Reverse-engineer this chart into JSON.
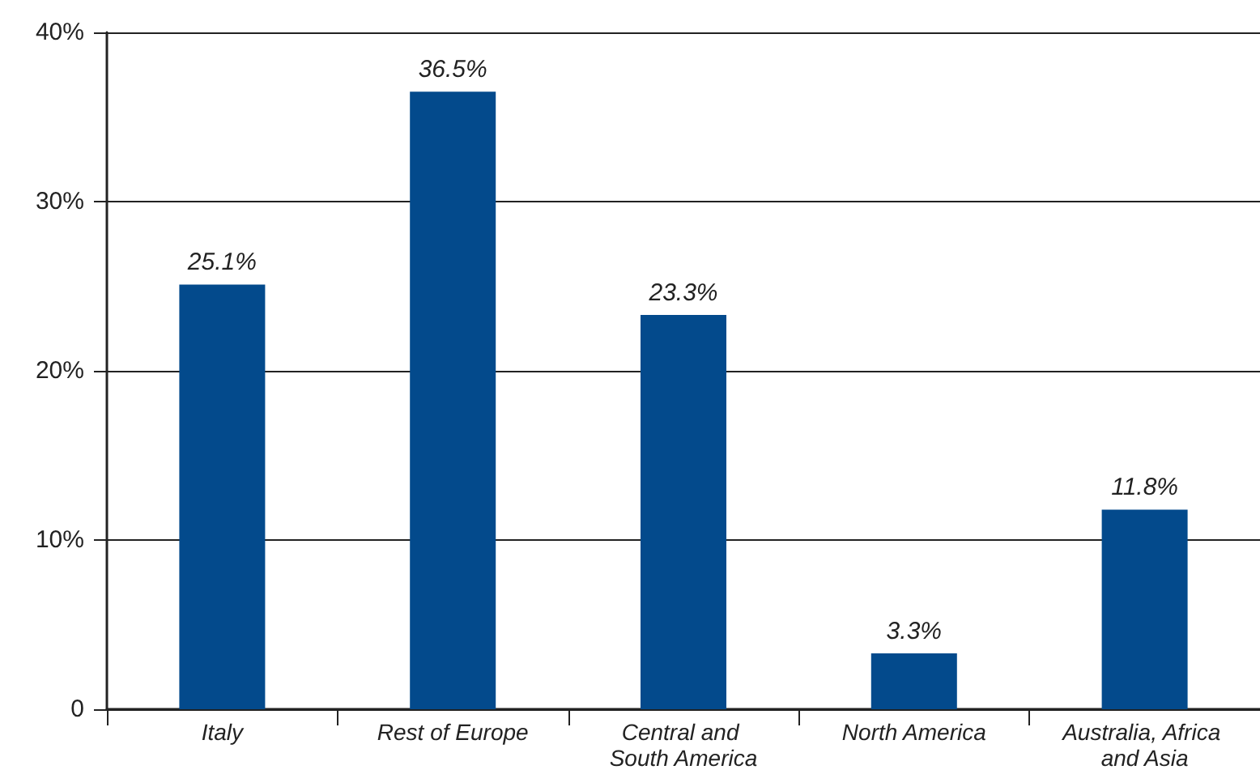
{
  "chart_data": {
    "type": "bar",
    "categories": [
      "Italy",
      "Rest of Europe",
      "Central and South America",
      "North America",
      "Australia, Africa and Asia"
    ],
    "values": [
      25.1,
      36.5,
      23.3,
      3.3,
      11.8
    ],
    "value_labels": [
      "25.1%",
      "36.5%",
      "23.3%",
      "3.3%",
      "11.8%"
    ],
    "color": "#034a8c",
    "ylim": [
      0,
      40
    ],
    "yticks": [
      0,
      {
        "value": 10,
        "label": "10%"
      },
      {
        "value": 20,
        "label": "20%"
      },
      {
        "value": 30,
        "label": "30%"
      },
      {
        "value": 40,
        "label": "40%"
      }
    ],
    "grid": "y"
  }
}
